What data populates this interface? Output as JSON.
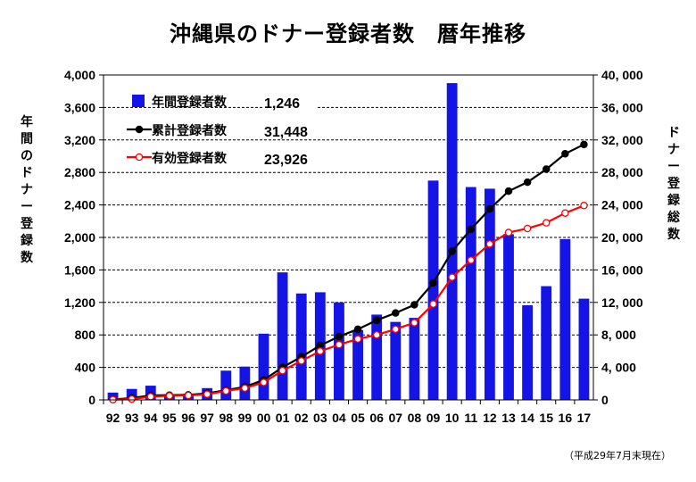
{
  "title": "沖縄県のドナー登録者数　暦年推移",
  "note": "（平成29年7月末現在）",
  "chart_data": {
    "type": "bar",
    "categories": [
      "92",
      "93",
      "94",
      "95",
      "96",
      "97",
      "98",
      "99",
      "00",
      "01",
      "02",
      "03",
      "04",
      "05",
      "06",
      "07",
      "08",
      "09",
      "10",
      "11",
      "12",
      "13",
      "14",
      "15",
      "16",
      "17"
    ],
    "series": [
      {
        "name": "年間登録者数",
        "type": "bar",
        "axis": "left",
        "color": "#1414e6",
        "legend_value": "1,246",
        "values": [
          90,
          135,
          175,
          70,
          75,
          145,
          360,
          410,
          815,
          1570,
          1310,
          1325,
          1200,
          860,
          1050,
          960,
          1010,
          2700,
          3900,
          2620,
          2600,
          2040,
          1165,
          1400,
          1980,
          1246
        ]
      },
      {
        "name": "累計登録者数",
        "type": "line",
        "axis": "right",
        "color": "#000000",
        "marker_fill": "#000000",
        "legend_value": "31,448",
        "values": [
          50,
          220,
          550,
          580,
          620,
          800,
          1200,
          1600,
          2450,
          4000,
          5300,
          6700,
          7800,
          8700,
          9800,
          10700,
          11700,
          14400,
          18300,
          21000,
          23500,
          25700,
          26800,
          28400,
          30300,
          31448
        ]
      },
      {
        "name": "有効登録者数",
        "type": "line",
        "axis": "right",
        "color": "#ff0000",
        "marker_fill": "#ffffff",
        "legend_value": "23,926",
        "values": [
          30,
          100,
          400,
          500,
          550,
          700,
          1100,
          1450,
          2150,
          3600,
          4800,
          6000,
          6800,
          7500,
          8000,
          8700,
          9500,
          11800,
          15100,
          17200,
          19200,
          20600,
          21100,
          21800,
          23000,
          23926
        ]
      }
    ],
    "y_left": {
      "label": "年間のドナー登録数",
      "range": [
        0,
        4000
      ],
      "ticks": [
        0,
        400,
        800,
        1200,
        1600,
        2000,
        2400,
        2800,
        3200,
        3600,
        4000
      ],
      "tick_labels": [
        "0",
        "400",
        "800",
        "1,200",
        "1,600",
        "2,000",
        "2,400",
        "2,800",
        "3,200",
        "3,600",
        "4,000"
      ]
    },
    "y_right": {
      "label": "ドナー登録総数",
      "range": [
        0,
        40000
      ],
      "ticks": [
        0,
        4000,
        8000,
        12000,
        16000,
        20000,
        24000,
        28000,
        32000,
        36000,
        40000
      ],
      "tick_labels": [
        "0",
        "4, 000",
        "8, 000",
        "12, 000",
        "16, 000",
        "20, 000",
        "24, 000",
        "28, 000",
        "32, 000",
        "36, 000",
        "40, 000"
      ]
    },
    "grid": "horizontal-dashed",
    "legend_position": "top-left"
  }
}
